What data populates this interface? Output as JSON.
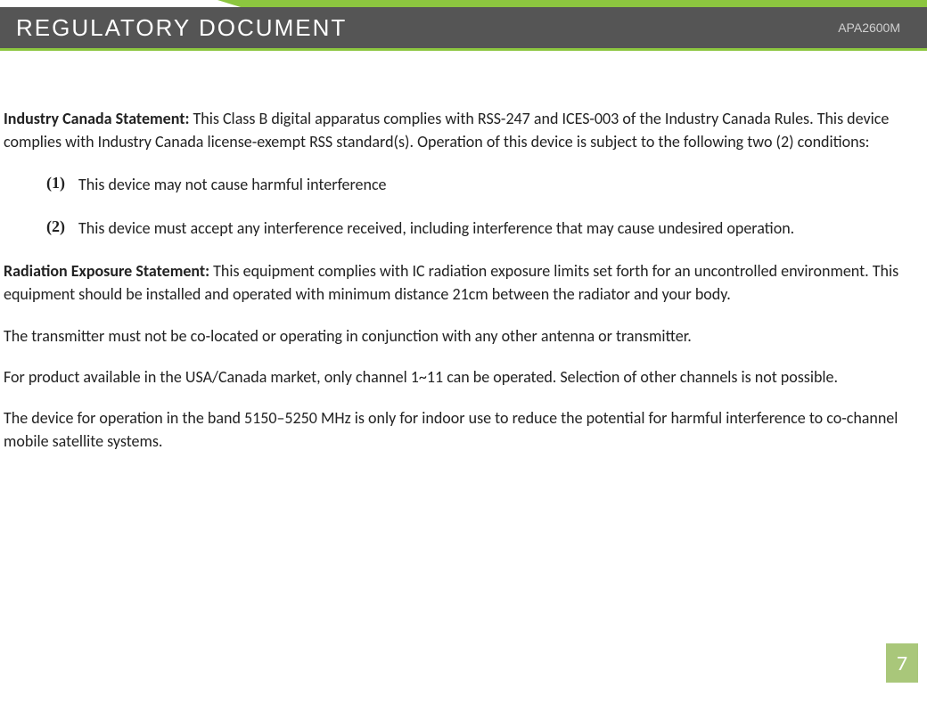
{
  "header": {
    "title": "REGULATORY DOCUMENT",
    "model": "APA2600M",
    "colors": {
      "bar_bg": "#555555",
      "accent": "#8cc63f",
      "title_color": "#ffffff",
      "model_color": "#d0d0d0"
    },
    "title_fontsize": 26,
    "model_fontsize": 14
  },
  "body": {
    "text_color": "#222222",
    "fontsize": 18,
    "sections": {
      "s1": {
        "lead": "Industry Canada Statement:",
        "rest": " This Class B digital apparatus complies with RSS-247 and ICES-003 of the Industry Canada Rules. This device complies with Industry Canada license-exempt RSS standard(s). Operation of this device is subject to the following two (2) conditions:"
      },
      "list": {
        "items": [
          {
            "marker": "(1)",
            "text": "This device may not cause harmful interference"
          },
          {
            "marker": "(2)",
            "text": "This device must accept any interference received, including interference that may cause undesired operation."
          }
        ]
      },
      "s2": {
        "lead": "Radiation Exposure Statement:",
        "rest": " This equipment complies with IC radiation exposure limits set forth for an uncontrolled environment.  This equipment should be installed and operated with minimum distance 21cm between the radiator and your body."
      },
      "p3": "The transmitter must not be co-located or operating in conjunction with any other antenna or transmitter.",
      "p4": "For product available in the USA/Canada market, only channel 1~11 can be operated. Selection of other channels is not possible.",
      "p5": "The device for operation in the band 5150–5250 MHz is only for indoor use to reduce the potential for harmful interference to co-channel mobile satellite systems."
    }
  },
  "page": {
    "number": "7",
    "box_bg": "#a9c77a",
    "box_color": "#ffffff",
    "fontsize": 24
  }
}
